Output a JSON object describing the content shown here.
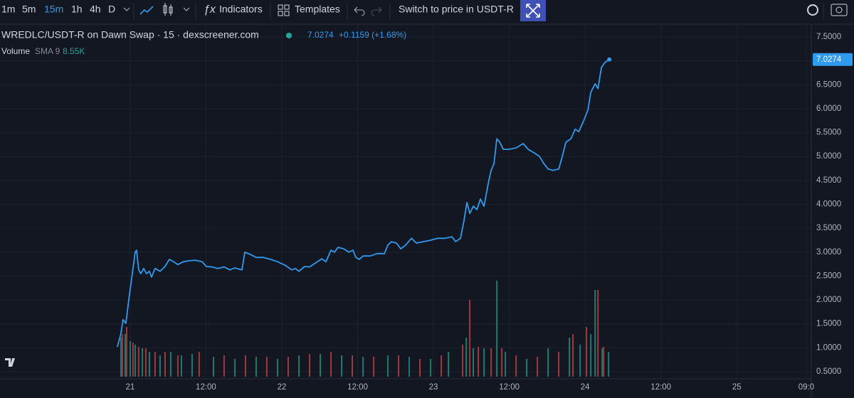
{
  "toolbar": {
    "intervals": [
      "1m",
      "5m",
      "15m",
      "1h",
      "4h",
      "D"
    ],
    "active_interval_index": 2,
    "indicators": "Indicators",
    "templates": "Templates",
    "switch_price": "Switch to price in USDT-R"
  },
  "legend": {
    "symbol": "WREDLC/USDT-R on Dawn Swap · 15 · dexscreener.com",
    "change": "+0.1159 (+1.68%)",
    "volume": "Volume",
    "sma": "SMA 9",
    "sma_value": "8.55K"
  },
  "chart_data": {
    "type": "line",
    "xlim": [
      -20.6,
      107.8
    ],
    "xticks": [
      {
        "value": 0,
        "label": "21"
      },
      {
        "value": 12,
        "label": "12:00"
      },
      {
        "value": 24,
        "label": "22"
      },
      {
        "value": 36,
        "label": "12:00"
      },
      {
        "value": 48,
        "label": "23"
      },
      {
        "value": 60,
        "label": "12:00"
      },
      {
        "value": 72,
        "label": "24"
      },
      {
        "value": 84,
        "label": "12:00"
      },
      {
        "value": 96,
        "label": "25"
      },
      {
        "value": 107,
        "label": "09:0"
      }
    ],
    "ylim": [
      0.396,
      7.678
    ],
    "yticks": [
      {
        "value": 0.5,
        "label": "0.5000"
      },
      {
        "value": 1,
        "label": "1.0000"
      },
      {
        "value": 1.5,
        "label": "1.5000"
      },
      {
        "value": 2,
        "label": "2.0000"
      },
      {
        "value": 2.5,
        "label": "2.5000"
      },
      {
        "value": 3,
        "label": "3.0000"
      },
      {
        "value": 3.5,
        "label": "3.5000"
      },
      {
        "value": 4,
        "label": "4.0000"
      },
      {
        "value": 4.5,
        "label": "4.5000"
      },
      {
        "value": 5,
        "label": "5.0000"
      },
      {
        "value": 5.5,
        "label": "5.5000"
      },
      {
        "value": 6,
        "label": "6.0000"
      },
      {
        "value": 6.5,
        "label": "6.5000"
      },
      {
        "value": 7,
        "label": "7.0000"
      },
      {
        "value": 7.5,
        "label": "7.5000"
      }
    ],
    "y2lim": [
      0,
      98
    ],
    "grid": true,
    "series": [
      {
        "type": "line",
        "color": "#2f9bf0",
        "x": [
          -2.03,
          -1.47,
          -1.13,
          -0.68,
          -0.34,
          0.11,
          0.56,
          0.79,
          1.01,
          1.35,
          1.69,
          2.14,
          2.59,
          3.04,
          3.38,
          3.94,
          4.73,
          5.52,
          6.2,
          6.87,
          7.55,
          8.45,
          9.35,
          10.37,
          11.38,
          12.06,
          12.96,
          13.86,
          14.87,
          15.78,
          16.56,
          17.69,
          18.14,
          19.04,
          19.94,
          21.07,
          22.2,
          23.32,
          24.45,
          25.58,
          26.14,
          26.71,
          27.61,
          28.4,
          28.96,
          29.63,
          30.31,
          30.99,
          31.78,
          32.34,
          32.9,
          33.8,
          34.59,
          35.27,
          35.72,
          36.28,
          36.85,
          37.97,
          39.1,
          40.23,
          40.79,
          41.35,
          42.14,
          42.82,
          43.61,
          44.51,
          45.3,
          46.42,
          47.55,
          48.68,
          49.8,
          50.93,
          51.49,
          52.28,
          52.85,
          53.3,
          53.75,
          54.31,
          54.88,
          55.44,
          56,
          56.68,
          57.13,
          57.58,
          58.03,
          58.48,
          59.05,
          59.95,
          61.08,
          62.2,
          62.99,
          63.89,
          64.79,
          65.47,
          66.14,
          66.93,
          67.83,
          68.39,
          68.96,
          69.75,
          70.42,
          70.99,
          71.78,
          72.45,
          72.9,
          73.58,
          74.03,
          74.59,
          75.16,
          75.83
        ],
        "values": [
          1.02,
          1.29,
          1.59,
          1.51,
          1.88,
          2.33,
          2.77,
          3.0,
          3.04,
          2.63,
          2.55,
          2.66,
          2.55,
          2.6,
          2.48,
          2.66,
          2.6,
          2.7,
          2.85,
          2.8,
          2.74,
          2.8,
          2.82,
          2.83,
          2.8,
          2.7,
          2.69,
          2.66,
          2.69,
          2.63,
          2.67,
          2.63,
          3.0,
          2.95,
          2.89,
          2.89,
          2.85,
          2.8,
          2.73,
          2.63,
          2.66,
          2.6,
          2.7,
          2.69,
          2.74,
          2.8,
          2.86,
          2.8,
          3.04,
          3.0,
          3.1,
          3.07,
          3.0,
          3.04,
          2.89,
          2.85,
          2.92,
          2.92,
          2.97,
          2.97,
          3.15,
          3.22,
          3.19,
          3.07,
          3.15,
          3.29,
          3.19,
          3.22,
          3.25,
          3.29,
          3.29,
          3.32,
          3.22,
          3.29,
          3.67,
          4.04,
          3.81,
          3.96,
          3.89,
          4.11,
          3.96,
          4.44,
          4.71,
          4.85,
          5.37,
          5.3,
          5.15,
          5.15,
          5.18,
          5.27,
          5.15,
          5.08,
          5.0,
          4.85,
          4.74,
          4.71,
          4.74,
          5.0,
          5.3,
          5.37,
          5.57,
          5.52,
          5.75,
          5.97,
          6.34,
          6.52,
          6.42,
          6.86,
          6.97,
          7.0274
        ]
      },
      {
        "type": "bar",
        "axis": "y2",
        "color": "#1f7a6e",
        "x": [
          -1.46,
          -0.79,
          0,
          0.79,
          1.92,
          3.04,
          4.73,
          6.42,
          8.11,
          9.8,
          13.18,
          16.56,
          19.94,
          23.32,
          26.71,
          30.09,
          33.47,
          36.85,
          40.79,
          44.17,
          47.55,
          50.37,
          53.19,
          54.31,
          56,
          58.03,
          59.38,
          62.76,
          66.14,
          69.52,
          71.21,
          72.9,
          73.58,
          74.71,
          75.72
        ],
        "values": [
          11,
          12,
          10,
          9,
          8,
          7,
          6,
          7,
          6,
          6.4,
          5.6,
          5,
          5.6,
          5,
          6,
          6.4,
          6,
          5.6,
          6,
          5.6,
          5,
          7,
          11,
          8,
          8,
          27,
          7,
          5,
          8,
          11,
          9,
          12,
          24.4,
          8,
          7
        ]
      },
      {
        "type": "bar",
        "axis": "y2",
        "color": "#a0393c",
        "x": [
          -1.24,
          -0.56,
          0.45,
          1.35,
          2.48,
          3.94,
          5.52,
          7.55,
          10.93,
          14.87,
          18.25,
          21.63,
          25.01,
          28.4,
          31.78,
          35.16,
          38.54,
          42.48,
          45.86,
          49.24,
          52.62,
          53.75,
          55.1,
          57.13,
          58.82,
          61.08,
          64.45,
          67.83,
          70.08,
          72.22,
          74.03,
          74.93
        ],
        "values": [
          12,
          14,
          9.6,
          8.4,
          8,
          7,
          7,
          6,
          7,
          6,
          6,
          5.6,
          5.6,
          6.4,
          7,
          6,
          5.6,
          6,
          5,
          6,
          9,
          21.6,
          8.4,
          8,
          8,
          6,
          5.6,
          7,
          12,
          14,
          24.4,
          8.4
        ]
      }
    ]
  }
}
